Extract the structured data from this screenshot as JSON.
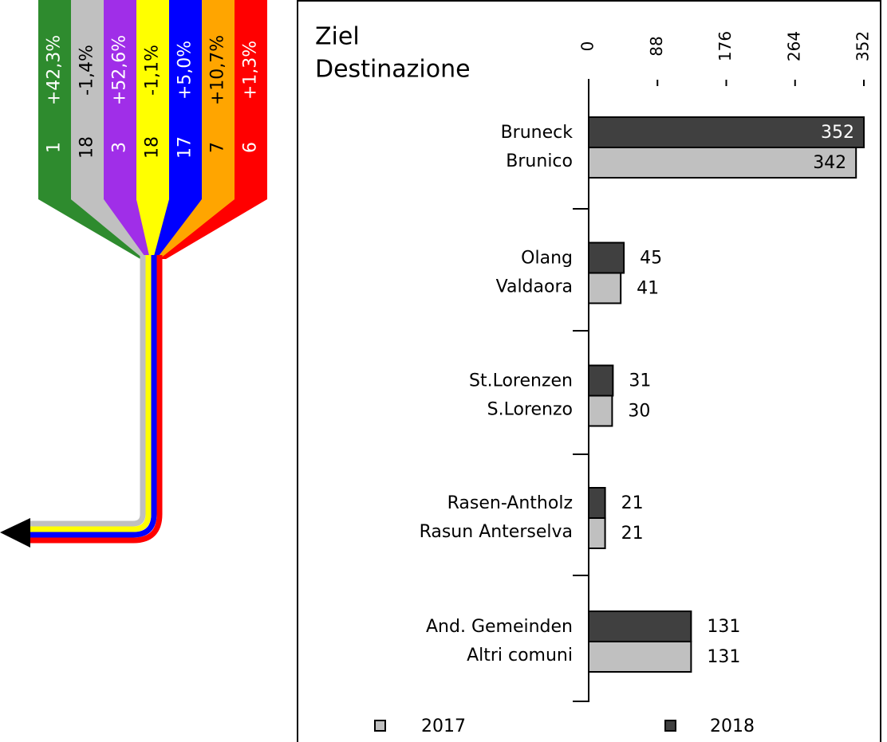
{
  "chart_data": {
    "type": "barh",
    "title": [
      "Ziel",
      "Destinazione"
    ],
    "categories": [
      [
        "Bruneck",
        "Brunico"
      ],
      [
        "Olang",
        "Valdaora"
      ],
      [
        "St.Lorenzen",
        "S.Lorenzo"
      ],
      [
        "Rasen-Antholz",
        "Rasun Anterselva"
      ],
      [
        "And. Gemeinden",
        "Altri comuni"
      ]
    ],
    "series": [
      {
        "name": "2018",
        "color": "#404040",
        "values": [
          352,
          45,
          31,
          21,
          131
        ]
      },
      {
        "name": "2017",
        "color": "#c0c0c0",
        "values": [
          342,
          41,
          30,
          21,
          131
        ]
      }
    ],
    "xlim": [
      0,
      352
    ],
    "xticks": [
      0,
      88,
      176,
      264,
      352
    ]
  },
  "flow": {
    "bands": [
      {
        "color": "#2e8b2e",
        "count": 1,
        "change": "+42,3%"
      },
      {
        "color": "#c0c0c0",
        "count": 18,
        "change": "-1,4%"
      },
      {
        "color": "#a02ee8",
        "count": 3,
        "change": "+52,6%"
      },
      {
        "color": "#ffff00",
        "count": 18,
        "change": "-1,1%"
      },
      {
        "color": "#0000ff",
        "count": 17,
        "change": "+5,0%"
      },
      {
        "color": "#ffa500",
        "count": 7,
        "change": "+10,7%"
      },
      {
        "color": "#ff0000",
        "count": 6,
        "change": "+1,3%"
      }
    ]
  }
}
